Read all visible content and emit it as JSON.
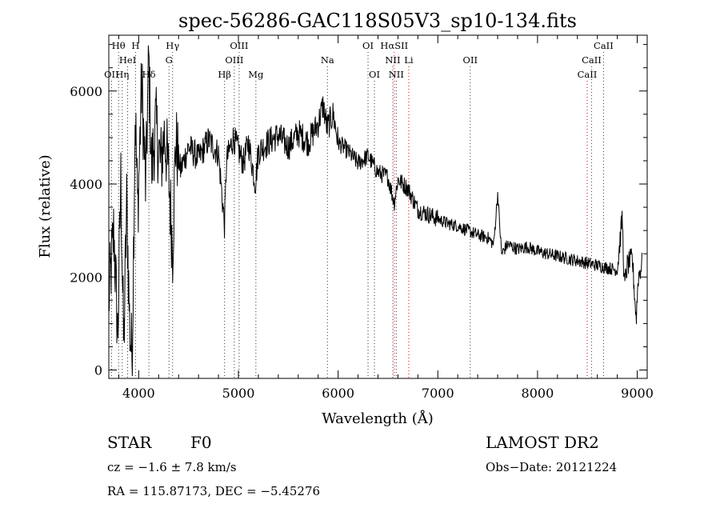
{
  "chart_data": {
    "type": "line",
    "title": "spec-56286-GAC118S05V3_sp10-134.fits",
    "xlabel": "Wavelength (Å)",
    "ylabel": "Flux (relative)",
    "xlim": [
      3700,
      9100
    ],
    "ylim": [
      -180,
      7200
    ],
    "xticks": [
      4000,
      5000,
      6000,
      7000,
      8000,
      9000
    ],
    "yticks": [
      0,
      2000,
      4000,
      6000
    ],
    "grid": false,
    "spectrum_anchors": [
      [
        3700,
        1500
      ],
      [
        3750,
        3000
      ],
      [
        3790,
        700
      ],
      [
        3820,
        4100
      ],
      [
        3850,
        450
      ],
      [
        3880,
        3600
      ],
      [
        3910,
        900
      ],
      [
        3935,
        250
      ],
      [
        3965,
        5600
      ],
      [
        3990,
        3400
      ],
      [
        4030,
        6200
      ],
      [
        4070,
        3900
      ],
      [
        4100,
        6700
      ],
      [
        4130,
        4300
      ],
      [
        4170,
        5300
      ],
      [
        4220,
        4400
      ],
      [
        4260,
        5100
      ],
      [
        4300,
        4200
      ],
      [
        4340,
        2600
      ],
      [
        4370,
        4900
      ],
      [
        4420,
        4300
      ],
      [
        4500,
        4800
      ],
      [
        4600,
        4550
      ],
      [
        4700,
        4950
      ],
      [
        4800,
        4650
      ],
      [
        4861,
        3100
      ],
      [
        4880,
        4500
      ],
      [
        4950,
        5000
      ],
      [
        5050,
        4450
      ],
      [
        5100,
        4900
      ],
      [
        5170,
        4000
      ],
      [
        5200,
        4700
      ],
      [
        5300,
        4900
      ],
      [
        5400,
        5050
      ],
      [
        5500,
        4800
      ],
      [
        5600,
        5100
      ],
      [
        5700,
        4900
      ],
      [
        5800,
        5300
      ],
      [
        5850,
        5700
      ],
      [
        5890,
        5200
      ],
      [
        5950,
        5500
      ],
      [
        6000,
        4900
      ],
      [
        6100,
        4700
      ],
      [
        6200,
        4450
      ],
      [
        6300,
        4600
      ],
      [
        6400,
        4250
      ],
      [
        6500,
        4150
      ],
      [
        6563,
        3600
      ],
      [
        6600,
        4100
      ],
      [
        6700,
        3900
      ],
      [
        6800,
        3450
      ],
      [
        6900,
        3350
      ],
      [
        7000,
        3250
      ],
      [
        7100,
        3150
      ],
      [
        7200,
        3100
      ],
      [
        7300,
        3000
      ],
      [
        7400,
        2900
      ],
      [
        7500,
        2850
      ],
      [
        7560,
        2700
      ],
      [
        7600,
        3800
      ],
      [
        7640,
        2500
      ],
      [
        7700,
        2700
      ],
      [
        7800,
        2600
      ],
      [
        7900,
        2650
      ],
      [
        8000,
        2550
      ],
      [
        8100,
        2500
      ],
      [
        8200,
        2450
      ],
      [
        8300,
        2400
      ],
      [
        8400,
        2350
      ],
      [
        8500,
        2300
      ],
      [
        8600,
        2250
      ],
      [
        8700,
        2200
      ],
      [
        8800,
        2150
      ],
      [
        8850,
        3300
      ],
      [
        8870,
        1800
      ],
      [
        8900,
        2250
      ],
      [
        8950,
        2400
      ],
      [
        8990,
        1100
      ],
      [
        9010,
        2000
      ],
      [
        9050,
        2300
      ]
    ],
    "spectral_lines": [
      {
        "label": "Hθ",
        "x": 3798,
        "row": 0,
        "color": "#333333"
      },
      {
        "label": "H",
        "x": 3968,
        "row": 0,
        "color": "#333333"
      },
      {
        "label": "Hγ",
        "x": 4340,
        "row": 0,
        "color": "#333333"
      },
      {
        "label": "OIII",
        "x": 5007,
        "row": 0,
        "color": "#333333"
      },
      {
        "label": "OI",
        "x": 6300,
        "row": 0,
        "color": "#333333"
      },
      {
        "label": "HαSII",
        "x": 6563,
        "row": 0,
        "color": "#cc0000"
      },
      {
        "label": "CaII",
        "x": 8662,
        "row": 0,
        "color": "#cc0000"
      },
      {
        "label": "HeI",
        "x": 3889,
        "row": 1,
        "color": "#333333"
      },
      {
        "label": "G",
        "x": 4304,
        "row": 1,
        "color": "#333333"
      },
      {
        "label": "OIII",
        "x": 4959,
        "row": 1,
        "color": "#333333"
      },
      {
        "label": "Na",
        "x": 5893,
        "row": 1,
        "color": "#333333"
      },
      {
        "label": "NII",
        "x": 6548,
        "row": 1,
        "color": "#333333"
      },
      {
        "label": "Li",
        "x": 6708,
        "row": 1,
        "color": "#cc0000"
      },
      {
        "label": "OII",
        "x": 7325,
        "row": 1,
        "color": "#333333"
      },
      {
        "label": "CaII",
        "x": 8542,
        "row": 1,
        "color": "#cc0000"
      },
      {
        "label": "OII",
        "x": 3727,
        "row": 2,
        "color": "#333333"
      },
      {
        "label": "Hη",
        "x": 3835,
        "row": 2,
        "color": "#333333"
      },
      {
        "label": "Hδ",
        "x": 4102,
        "row": 2,
        "color": "#333333"
      },
      {
        "label": "Hβ",
        "x": 4861,
        "row": 2,
        "color": "#333333"
      },
      {
        "label": "Mg",
        "x": 5175,
        "row": 2,
        "color": "#333333"
      },
      {
        "label": "OI",
        "x": 6364,
        "row": 2,
        "color": "#333333"
      },
      {
        "label": "NII",
        "x": 6583,
        "row": 2,
        "color": "#333333"
      },
      {
        "label": "CaII",
        "x": 8498,
        "row": 2,
        "color": "#cc0000"
      }
    ]
  },
  "info": {
    "class_label": "STAR",
    "subclass": "F0",
    "survey": "LAMOST DR2",
    "cz": "cz = −1.6 ± 7.8 km/s",
    "obs_date": "Obs−Date: 20121224",
    "coords": "RA = 115.87173, DEC =  −5.45276"
  }
}
